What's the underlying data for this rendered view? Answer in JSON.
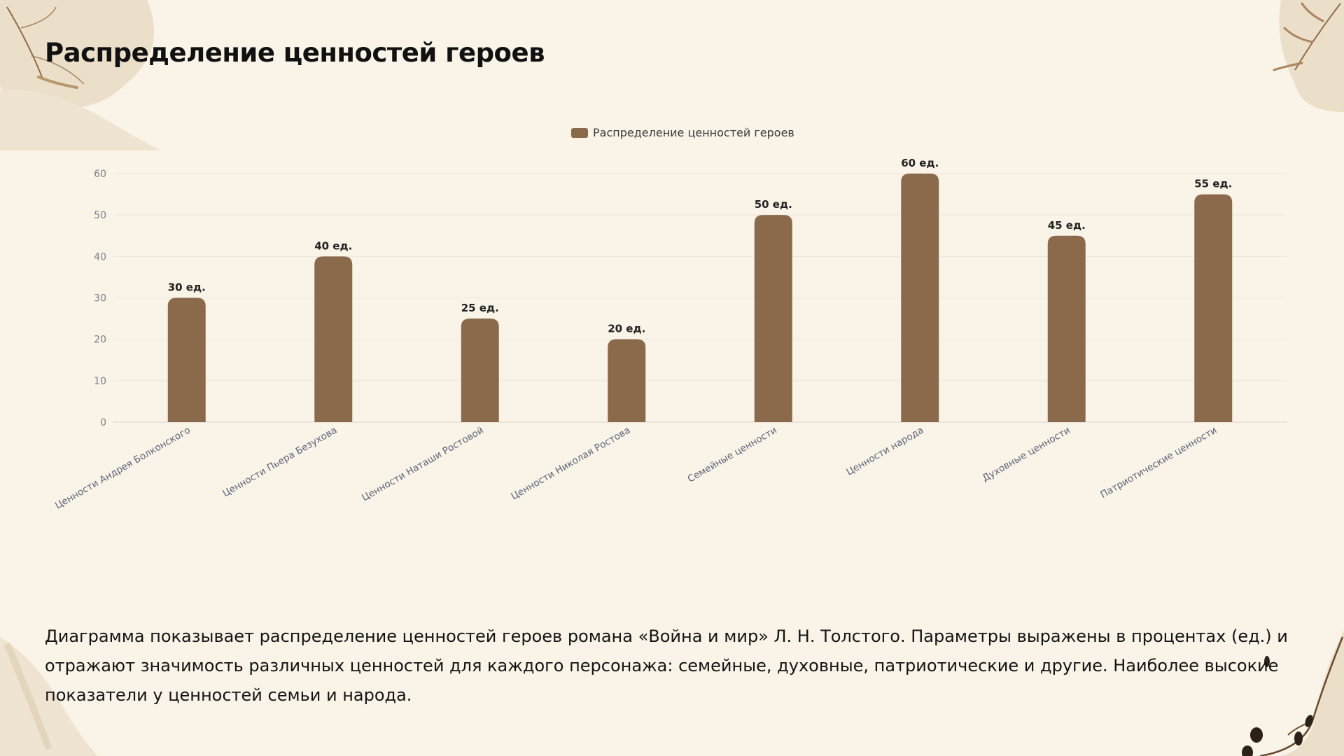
{
  "slide": {
    "title": "Распределение ценностей героев",
    "caption": "Диаграмма показывает распределение ценностей героев романа «Война и мир» Л. Н. Толстого. Параметры выражены в процентах (ед.) и отражают значимость различных ценностей для каждого персонажа: семейные, духовные, патриотические и другие. Наиболее высокие показатели у ценностей семьи и народа."
  },
  "colors": {
    "bar": "#8b6a4c",
    "background": "#faf3e7",
    "grid": "#ebe5db",
    "axis": "#d9d5cc",
    "decor": "#e6d9c1",
    "decor_line": "#a88a68"
  },
  "chart_data": {
    "type": "bar",
    "legend": {
      "entries": [
        "Распределение ценностей героев"
      ],
      "position": "top-center"
    },
    "categories": [
      "Ценности Андрея Болконского",
      "Ценности Пьера Безухова",
      "Ценности Наташи Ростовой",
      "Ценности Николая Ростова",
      "Семейные ценности",
      "Ценности народа",
      "Духовные ценности",
      "Патриотические ценности"
    ],
    "series": [
      {
        "name": "Распределение ценностей героев",
        "values": [
          30,
          40,
          25,
          20,
          50,
          60,
          45,
          55
        ]
      }
    ],
    "data_labels": [
      "30 ед.",
      "40 ед.",
      "25 ед.",
      "20 ед.",
      "50 ед.",
      "60 ед.",
      "45 ед.",
      "55 ед."
    ],
    "yticks": [
      0,
      10,
      20,
      30,
      40,
      50,
      60
    ],
    "ylim": [
      0,
      60
    ],
    "grid": true
  }
}
